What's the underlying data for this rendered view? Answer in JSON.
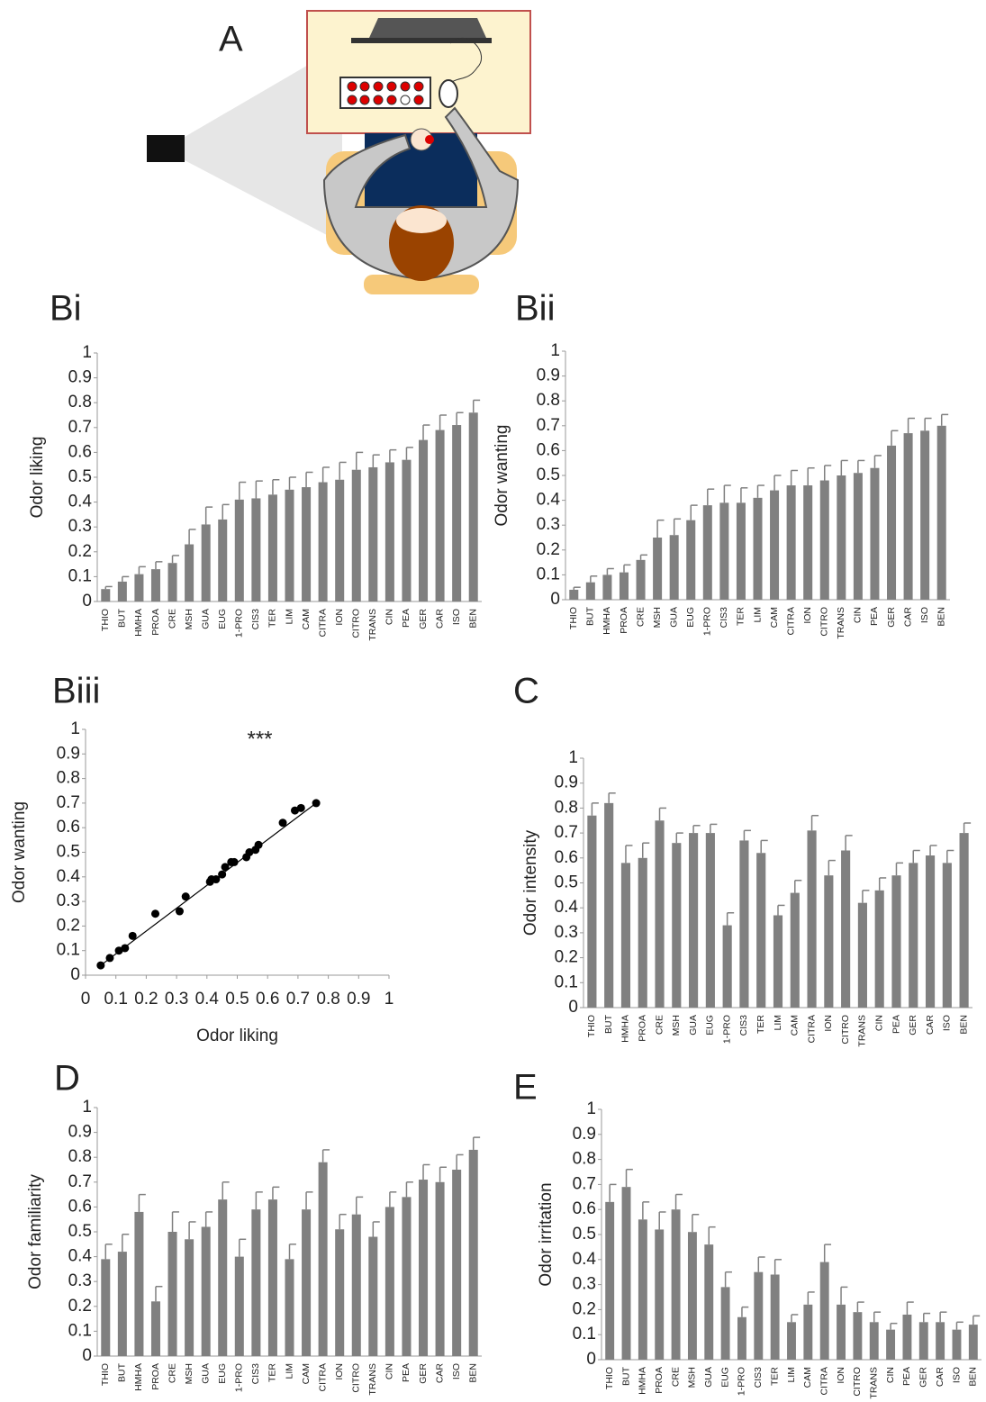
{
  "illustration": {
    "label": "A"
  },
  "chart_data": [
    {
      "type": "bar",
      "panel": "Bi",
      "ylabel": "Odor liking",
      "categories": [
        "THIO",
        "BUT",
        "HMHA",
        "PROA",
        "CRE",
        "MSH",
        "GUA",
        "EUG",
        "1-PRO",
        "CIS3",
        "TER",
        "LIM",
        "CAM",
        "CITRA",
        "ION",
        "CITRO",
        "TRANS",
        "CIN",
        "PEA",
        "GER",
        "CAR",
        "ISO",
        "BEN"
      ],
      "values": [
        0.05,
        0.08,
        0.11,
        0.13,
        0.155,
        0.23,
        0.31,
        0.33,
        0.41,
        0.415,
        0.43,
        0.45,
        0.46,
        0.48,
        0.49,
        0.53,
        0.54,
        0.56,
        0.57,
        0.65,
        0.69,
        0.71,
        0.76
      ],
      "errors": [
        0.01,
        0.02,
        0.03,
        0.03,
        0.03,
        0.06,
        0.07,
        0.06,
        0.07,
        0.07,
        0.06,
        0.05,
        0.06,
        0.06,
        0.07,
        0.07,
        0.05,
        0.05,
        0.05,
        0.06,
        0.06,
        0.05,
        0.05
      ],
      "color": "#808080",
      "ylim": [
        0,
        1
      ],
      "yticks": [
        0,
        0.1,
        0.2,
        0.3,
        0.4,
        0.5,
        0.6,
        0.7,
        0.8,
        0.9,
        1
      ],
      "grid": false
    },
    {
      "type": "bar",
      "panel": "Bii",
      "ylabel": "Odor wanting",
      "categories": [
        "THIO",
        "BUT",
        "HMHA",
        "PROA",
        "CRE",
        "MSH",
        "GUA",
        "EUG",
        "1-PRO",
        "CIS3",
        "TER",
        "LIM",
        "CAM",
        "CITRA",
        "ION",
        "CITRO",
        "TRANS",
        "CIN",
        "PEA",
        "GER",
        "CAR",
        "ISO",
        "BEN"
      ],
      "values": [
        0.04,
        0.07,
        0.1,
        0.11,
        0.16,
        0.25,
        0.26,
        0.32,
        0.38,
        0.39,
        0.39,
        0.41,
        0.44,
        0.46,
        0.46,
        0.48,
        0.5,
        0.51,
        0.53,
        0.62,
        0.67,
        0.68,
        0.7
      ],
      "errors": [
        0.01,
        0.025,
        0.025,
        0.03,
        0.02,
        0.07,
        0.065,
        0.06,
        0.065,
        0.07,
        0.06,
        0.05,
        0.06,
        0.06,
        0.07,
        0.06,
        0.06,
        0.05,
        0.05,
        0.06,
        0.06,
        0.05,
        0.045
      ],
      "color": "#808080",
      "ylim": [
        0,
        1
      ],
      "yticks": [
        0,
        0.1,
        0.2,
        0.3,
        0.4,
        0.5,
        0.6,
        0.7,
        0.8,
        0.9,
        1
      ],
      "grid": false
    },
    {
      "type": "scatter",
      "panel": "Biii",
      "xlabel": "Odor liking",
      "ylabel": "Odor wanting",
      "annotation": "***",
      "x": [
        0.05,
        0.08,
        0.11,
        0.13,
        0.155,
        0.23,
        0.31,
        0.33,
        0.41,
        0.415,
        0.43,
        0.45,
        0.46,
        0.48,
        0.49,
        0.53,
        0.54,
        0.56,
        0.57,
        0.65,
        0.69,
        0.71,
        0.76
      ],
      "y": [
        0.04,
        0.07,
        0.1,
        0.11,
        0.16,
        0.25,
        0.26,
        0.32,
        0.38,
        0.39,
        0.39,
        0.41,
        0.44,
        0.46,
        0.46,
        0.48,
        0.5,
        0.51,
        0.53,
        0.62,
        0.67,
        0.68,
        0.7
      ],
      "trendline": {
        "x": [
          0.05,
          0.76
        ],
        "y": [
          0.04,
          0.7
        ]
      },
      "color": "#000000",
      "xlim": [
        0,
        1
      ],
      "ylim": [
        0,
        1
      ],
      "xticks": [
        0,
        0.1,
        0.2,
        0.3,
        0.4,
        0.5,
        0.6,
        0.7,
        0.8,
        0.9,
        1
      ],
      "yticks": [
        0,
        0.1,
        0.2,
        0.3,
        0.4,
        0.5,
        0.6,
        0.7,
        0.8,
        0.9,
        1
      ],
      "grid": false
    },
    {
      "type": "bar",
      "panel": "C",
      "ylabel": "Odor intensity",
      "categories": [
        "THIO",
        "BUT",
        "HMHA",
        "PROA",
        "CRE",
        "MSH",
        "GUA",
        "EUG",
        "1-PRO",
        "CIS3",
        "TER",
        "LIM",
        "CAM",
        "CITRA",
        "ION",
        "CITRO",
        "TRANS",
        "CIN",
        "PEA",
        "GER",
        "CAR",
        "ISO",
        "BEN"
      ],
      "values": [
        0.77,
        0.82,
        0.58,
        0.6,
        0.75,
        0.66,
        0.7,
        0.7,
        0.33,
        0.67,
        0.62,
        0.37,
        0.46,
        0.71,
        0.53,
        0.63,
        0.42,
        0.47,
        0.53,
        0.58,
        0.61,
        0.58,
        0.7
      ],
      "errors": [
        0.05,
        0.04,
        0.07,
        0.06,
        0.05,
        0.04,
        0.03,
        0.035,
        0.05,
        0.04,
        0.05,
        0.04,
        0.05,
        0.06,
        0.06,
        0.06,
        0.05,
        0.05,
        0.05,
        0.05,
        0.04,
        0.05,
        0.04
      ],
      "color": "#808080",
      "ylim": [
        0,
        1
      ],
      "yticks": [
        0,
        0.1,
        0.2,
        0.3,
        0.4,
        0.5,
        0.6,
        0.7,
        0.8,
        0.9,
        1
      ],
      "grid": false
    },
    {
      "type": "bar",
      "panel": "D",
      "ylabel": "Odor familiarity",
      "categories": [
        "THIO",
        "BUT",
        "HMHA",
        "PROA",
        "CRE",
        "MSH",
        "GUA",
        "EUG",
        "1-PRO",
        "CIS3",
        "TER",
        "LIM",
        "CAM",
        "CITRA",
        "ION",
        "CITRO",
        "TRANS",
        "CIN",
        "PEA",
        "GER",
        "CAR",
        "ISO",
        "BEN"
      ],
      "values": [
        0.39,
        0.42,
        0.58,
        0.22,
        0.5,
        0.47,
        0.52,
        0.63,
        0.4,
        0.59,
        0.63,
        0.39,
        0.59,
        0.78,
        0.51,
        0.57,
        0.48,
        0.6,
        0.64,
        0.71,
        0.7,
        0.75,
        0.83
      ],
      "errors": [
        0.06,
        0.07,
        0.07,
        0.06,
        0.08,
        0.07,
        0.06,
        0.07,
        0.07,
        0.07,
        0.05,
        0.06,
        0.07,
        0.05,
        0.06,
        0.07,
        0.06,
        0.06,
        0.06,
        0.06,
        0.06,
        0.06,
        0.05
      ],
      "color": "#808080",
      "ylim": [
        0,
        1
      ],
      "yticks": [
        0,
        0.1,
        0.2,
        0.3,
        0.4,
        0.5,
        0.6,
        0.7,
        0.8,
        0.9,
        1
      ],
      "grid": false
    },
    {
      "type": "bar",
      "panel": "E",
      "ylabel": "Odor irritation",
      "categories": [
        "THIO",
        "BUT",
        "HMHA",
        "PROA",
        "CRE",
        "MSH",
        "GUA",
        "EUG",
        "1-PRO",
        "CIS3",
        "TER",
        "LIM",
        "CAM",
        "CITRA",
        "ION",
        "CITRO",
        "TRANS",
        "CIN",
        "PEA",
        "GER",
        "CAR",
        "ISO",
        "BEN"
      ],
      "values": [
        0.63,
        0.69,
        0.56,
        0.52,
        0.6,
        0.51,
        0.46,
        0.29,
        0.17,
        0.35,
        0.34,
        0.15,
        0.22,
        0.39,
        0.22,
        0.19,
        0.15,
        0.12,
        0.18,
        0.15,
        0.15,
        0.12,
        0.14
      ],
      "errors": [
        0.07,
        0.07,
        0.07,
        0.07,
        0.06,
        0.07,
        0.07,
        0.06,
        0.04,
        0.06,
        0.06,
        0.03,
        0.05,
        0.07,
        0.07,
        0.04,
        0.04,
        0.025,
        0.05,
        0.035,
        0.04,
        0.03,
        0.035
      ],
      "color": "#808080",
      "ylim": [
        0,
        1
      ],
      "yticks": [
        0,
        0.1,
        0.2,
        0.3,
        0.4,
        0.5,
        0.6,
        0.7,
        0.8,
        0.9,
        1
      ],
      "grid": false
    }
  ]
}
